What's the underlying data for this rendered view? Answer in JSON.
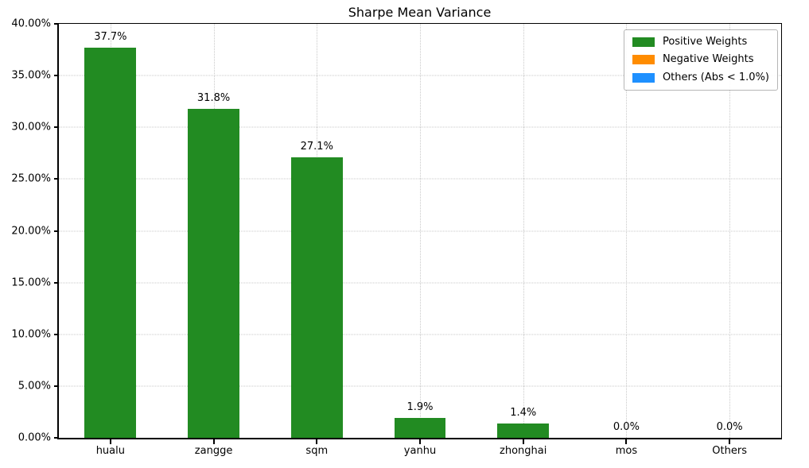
{
  "chart_data": {
    "type": "bar",
    "title": "Sharpe Mean Variance",
    "categories": [
      "hualu",
      "zangge",
      "sqm",
      "yanhu",
      "zhonghai",
      "mos",
      "Others"
    ],
    "values": [
      37.7,
      31.8,
      27.1,
      1.9,
      1.4,
      0.0,
      0.0
    ],
    "bar_labels": [
      "37.7%",
      "31.8%",
      "27.1%",
      "1.9%",
      "1.4%",
      "0.0%",
      "0.0%"
    ],
    "xlabel": "",
    "ylabel": "",
    "ylim": [
      0,
      40
    ],
    "yticks": [
      0,
      5,
      10,
      15,
      20,
      25,
      30,
      35,
      40
    ],
    "ytick_labels": [
      "0.00%",
      "5.00%",
      "10.00%",
      "15.00%",
      "20.00%",
      "25.00%",
      "30.00%",
      "35.00%",
      "40.00%"
    ],
    "bar_color": "#228B22",
    "grid": "dotted, horizontal and vertical",
    "legend": {
      "position": "upper right",
      "entries": [
        {
          "label": "Positive Weights",
          "color": "#228B22"
        },
        {
          "label": "Negative Weights",
          "color": "#FF8C00"
        },
        {
          "label": "Others (Abs < 1.0%)",
          "color": "#1E90FF"
        }
      ]
    }
  }
}
